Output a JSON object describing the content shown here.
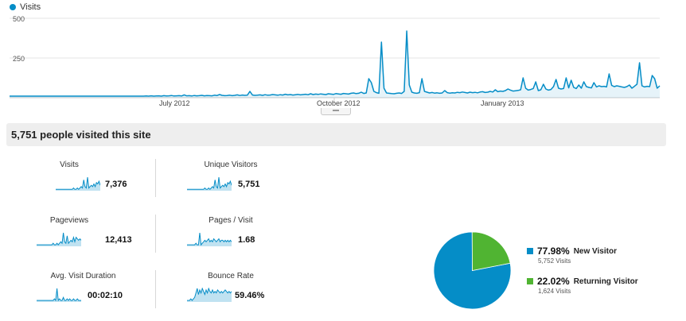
{
  "legend": {
    "series": "Visits",
    "color": "#058dc7"
  },
  "chart_data": {
    "type": "area",
    "series": [
      {
        "name": "Visits",
        "values": [
          10,
          10,
          10,
          10,
          10,
          10,
          10,
          10,
          10,
          10,
          10,
          10,
          10,
          10,
          10,
          10,
          10,
          10,
          10,
          10,
          10,
          10,
          10,
          10,
          10,
          10,
          10,
          10,
          10,
          10,
          10,
          10,
          10,
          10,
          10,
          10,
          10,
          10,
          10,
          10,
          10,
          10,
          10,
          10,
          10,
          10,
          10,
          10,
          10,
          10,
          10,
          10,
          10,
          10,
          11,
          10,
          12,
          10,
          11,
          12,
          10,
          13,
          11,
          12,
          14,
          11,
          12,
          13,
          11,
          18,
          12,
          13,
          11,
          14,
          12,
          13,
          15,
          12,
          14,
          13,
          12,
          16,
          14,
          20,
          15,
          13,
          14,
          16,
          13,
          15,
          18,
          14,
          17,
          15,
          16,
          40,
          17,
          15,
          16,
          18,
          15,
          19,
          16,
          17,
          20,
          18,
          16,
          19,
          17,
          22,
          18,
          20,
          17,
          19,
          21,
          18,
          20,
          22,
          19,
          25,
          20,
          23,
          21,
          24,
          22,
          20,
          25,
          23,
          21,
          26,
          24,
          22,
          27,
          25,
          23,
          28,
          30,
          26,
          28,
          35,
          27,
          30,
          120,
          95,
          40,
          32,
          28,
          350,
          60,
          30,
          28,
          26,
          25,
          28,
          30,
          27,
          40,
          420,
          80,
          35,
          30,
          28,
          32,
          120,
          40,
          35,
          30,
          33,
          29,
          31,
          28,
          30,
          45,
          32,
          29,
          31,
          30,
          34,
          32,
          36,
          33,
          30,
          35,
          32,
          34,
          31,
          36,
          38,
          33,
          35,
          40,
          36,
          50,
          38,
          42,
          40,
          45,
          55,
          48,
          42,
          44,
          46,
          50,
          125,
          60,
          48,
          52,
          58,
          100,
          45,
          50,
          85,
          55,
          48,
          52,
          70,
          115,
          60,
          55,
          58,
          125,
          62,
          110,
          65,
          58,
          80,
          60,
          100,
          70,
          65,
          62,
          95,
          68,
          75,
          70,
          72,
          68,
          150,
          78,
          70,
          75,
          72,
          68,
          65,
          70,
          80,
          60,
          72,
          85,
          220,
          75,
          68,
          72,
          70,
          140,
          120,
          60,
          75
        ]
      }
    ],
    "ylim": [
      0,
      500
    ],
    "yticks": [
      "500",
      "250"
    ],
    "xticks": [
      {
        "label": "July 2012",
        "at": 0.25
      },
      {
        "label": "October 2012",
        "at": 0.5
      },
      {
        "label": "January 2013",
        "at": 0.755
      }
    ]
  },
  "summary": {
    "title": "5,751 people visited this site"
  },
  "metrics": [
    {
      "label": "Visits",
      "value": "7,376",
      "spark": [
        1,
        1,
        1,
        1,
        1,
        1,
        1,
        1,
        1,
        1,
        1,
        1,
        1,
        1,
        2,
        1,
        1,
        2,
        1,
        2,
        3,
        2,
        8,
        3,
        2,
        10,
        2,
        3,
        4,
        3,
        5,
        3,
        6,
        5,
        7,
        4
      ]
    },
    {
      "label": "Unique Visitors",
      "value": "5,751",
      "spark": [
        1,
        1,
        1,
        1,
        1,
        1,
        1,
        1,
        1,
        1,
        1,
        1,
        1,
        1,
        2,
        1,
        1,
        2,
        1,
        2,
        3,
        2,
        8,
        3,
        2,
        10,
        2,
        3,
        4,
        3,
        5,
        3,
        6,
        5,
        7,
        4
      ]
    },
    {
      "label": "Pageviews",
      "value": "12,413",
      "spark": [
        1,
        1,
        1,
        1,
        1,
        1,
        1,
        1,
        1,
        1,
        1,
        1,
        1,
        2,
        1,
        1,
        2,
        1,
        2,
        3,
        2,
        9,
        3,
        2,
        7,
        2,
        3,
        4,
        3,
        6,
        3,
        6,
        5,
        4,
        5,
        4
      ]
    },
    {
      "label": "Pages / Visit",
      "value": "1.68",
      "spark": [
        1,
        1,
        1,
        1,
        1,
        1,
        1,
        2,
        1,
        1,
        9,
        1,
        2,
        3,
        4,
        3,
        4,
        5,
        3,
        4,
        3,
        5,
        4,
        3,
        4,
        5,
        3,
        4,
        4,
        3,
        4,
        3,
        4,
        3,
        4,
        3
      ]
    },
    {
      "label": "Avg. Visit Duration",
      "value": "00:02:10",
      "spark": [
        1,
        1,
        1,
        1,
        1,
        1,
        1,
        1,
        1,
        1,
        1,
        1,
        1,
        1,
        2,
        1,
        9,
        1,
        2,
        1,
        1,
        3,
        1,
        1,
        2,
        1,
        2,
        1,
        1,
        2,
        1,
        1,
        2,
        1,
        1,
        1
      ]
    },
    {
      "label": "Bounce Rate",
      "value": "59.46%",
      "spark": [
        1,
        1,
        1,
        2,
        1,
        2,
        3,
        6,
        9,
        5,
        8,
        6,
        9,
        7,
        5,
        8,
        6,
        9,
        7,
        6,
        8,
        6,
        7,
        6,
        8,
        7,
        6,
        7,
        6,
        7,
        8,
        7,
        6,
        7,
        6,
        7
      ]
    }
  ],
  "pie": {
    "segments": [
      {
        "pct": "77.98%",
        "value": 77.98,
        "name": "New Visitor",
        "sub": "5,752 Visits",
        "color": "#058dc7"
      },
      {
        "pct": "22.02%",
        "value": 22.02,
        "name": "Returning Visitor",
        "sub": "1,624 Visits",
        "color": "#50b432"
      }
    ]
  }
}
